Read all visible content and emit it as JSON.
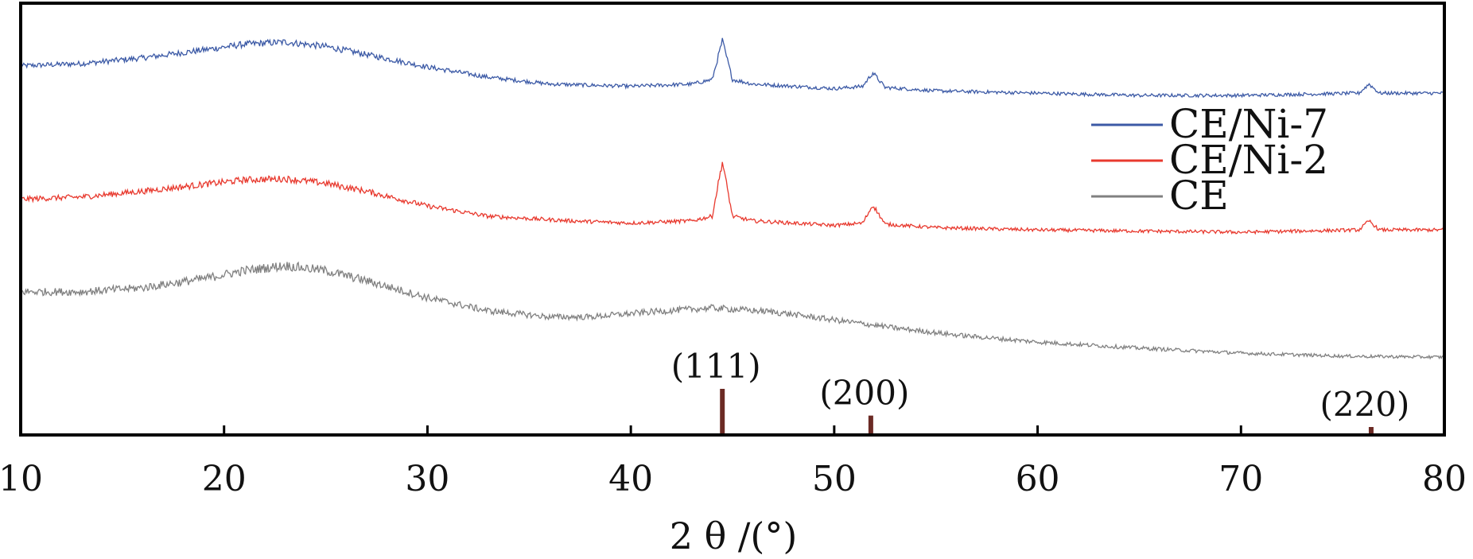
{
  "chart_data": {
    "type": "line",
    "title": "",
    "xlabel": "2 θ /(°)",
    "ylabel": "",
    "xlim": [
      10,
      80
    ],
    "xticks": [
      10,
      20,
      30,
      40,
      50,
      60,
      70,
      80
    ],
    "y_axis_ticks": "none",
    "grid": false,
    "legend": {
      "placement": "right"
    },
    "series": [
      {
        "name": "CE/Ni-7",
        "color": "#3c5aa6",
        "profile": [
          [
            10,
            0.26
          ],
          [
            13,
            0.28
          ],
          [
            16,
            0.33
          ],
          [
            19,
            0.4
          ],
          [
            21,
            0.45
          ],
          [
            23,
            0.47
          ],
          [
            25,
            0.43
          ],
          [
            27,
            0.36
          ],
          [
            30,
            0.25
          ],
          [
            33,
            0.16
          ],
          [
            36,
            0.1
          ],
          [
            40,
            0.08
          ],
          [
            43,
            0.1
          ],
          [
            44,
            0.14
          ],
          [
            44.5,
            0.48
          ],
          [
            45,
            0.14
          ],
          [
            46,
            0.1
          ],
          [
            48,
            0.08
          ],
          [
            50,
            0.06
          ],
          [
            51.4,
            0.08
          ],
          [
            51.9,
            0.2
          ],
          [
            52.5,
            0.07
          ],
          [
            55,
            0.04
          ],
          [
            60,
            0.02
          ],
          [
            65,
            0.0
          ],
          [
            70,
            0.0
          ],
          [
            75.8,
            0.02
          ],
          [
            76.3,
            0.1
          ],
          [
            76.8,
            0.02
          ],
          [
            80,
            0.02
          ]
        ]
      },
      {
        "name": "CE/Ni-2",
        "color": "#e8392e",
        "profile": [
          [
            10,
            0.29
          ],
          [
            13,
            0.31
          ],
          [
            16,
            0.36
          ],
          [
            19,
            0.42
          ],
          [
            21,
            0.46
          ],
          [
            23,
            0.47
          ],
          [
            25,
            0.43
          ],
          [
            27,
            0.36
          ],
          [
            30,
            0.23
          ],
          [
            33,
            0.14
          ],
          [
            37,
            0.1
          ],
          [
            40,
            0.08
          ],
          [
            43,
            0.1
          ],
          [
            44,
            0.14
          ],
          [
            44.5,
            0.62
          ],
          [
            45,
            0.14
          ],
          [
            46,
            0.1
          ],
          [
            48,
            0.08
          ],
          [
            50,
            0.06
          ],
          [
            51.4,
            0.08
          ],
          [
            51.9,
            0.24
          ],
          [
            52.5,
            0.07
          ],
          [
            55,
            0.04
          ],
          [
            60,
            0.02
          ],
          [
            70,
            0.0
          ],
          [
            75.8,
            0.02
          ],
          [
            76.3,
            0.1
          ],
          [
            76.8,
            0.02
          ],
          [
            80,
            0.02
          ]
        ]
      },
      {
        "name": "CE",
        "color": "#808080",
        "profile": [
          [
            10,
            0.72
          ],
          [
            13,
            0.72
          ],
          [
            16,
            0.76
          ],
          [
            19,
            0.85
          ],
          [
            21,
            0.93
          ],
          [
            23,
            0.98
          ],
          [
            25,
            0.93
          ],
          [
            27,
            0.83
          ],
          [
            30,
            0.66
          ],
          [
            33,
            0.53
          ],
          [
            36,
            0.47
          ],
          [
            38,
            0.47
          ],
          [
            41,
            0.52
          ],
          [
            44,
            0.56
          ],
          [
            47,
            0.52
          ],
          [
            50,
            0.44
          ],
          [
            53,
            0.36
          ],
          [
            56,
            0.29
          ],
          [
            60,
            0.22
          ],
          [
            65,
            0.16
          ],
          [
            70,
            0.11
          ],
          [
            75,
            0.08
          ],
          [
            80,
            0.07
          ]
        ]
      }
    ],
    "reference_peaks": [
      {
        "x": 44.5,
        "label": "(111)",
        "intensity": 100
      },
      {
        "x": 51.8,
        "label": "(200)",
        "intensity": 42
      },
      {
        "x": 76.4,
        "label": "(220)",
        "intensity": 17
      }
    ],
    "reference_color": "#6b2a24"
  }
}
